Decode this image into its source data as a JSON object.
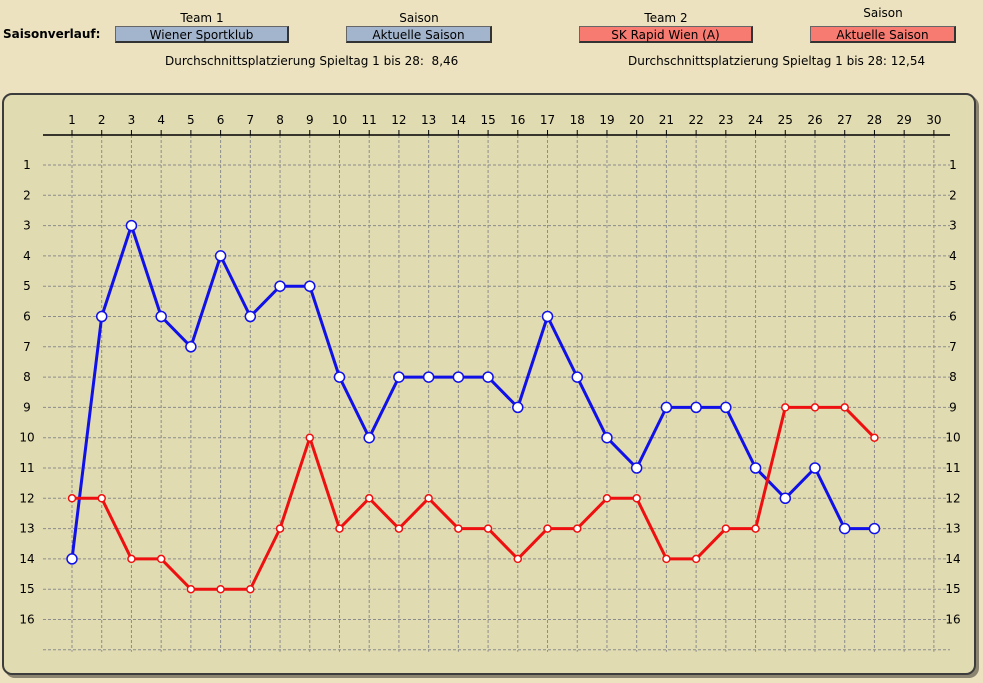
{
  "header": {
    "section_label": "Saisonverlauf:",
    "team1_label": "Team 1",
    "team1_name": "Wiener Sportklub",
    "season1_label": "Saison",
    "season1_value": "Aktuelle Saison",
    "team2_label": "Team 2",
    "team2_name": "SK Rapid Wien (A)",
    "season2_label": "Saison",
    "season2_value": "Aktuelle Saison",
    "avg1_text": "Durchschnittsplatzierung Spieltag 1 bis 28:  8,46",
    "avg2_text": "Durchschnittsplatzierung Spieltag 1 bis 28: 12,54"
  },
  "colors": {
    "team1": "#1010e8",
    "team2": "#ee1010",
    "team1_selector": "#a3b5cd",
    "team2_selector": "#f77b70"
  },
  "chart_data": {
    "type": "line",
    "title": "",
    "xlabel": "",
    "ylabel": "",
    "x_ticks": [
      1,
      2,
      3,
      4,
      5,
      6,
      7,
      8,
      9,
      10,
      11,
      12,
      13,
      14,
      15,
      16,
      17,
      18,
      19,
      20,
      21,
      22,
      23,
      24,
      25,
      26,
      27,
      28,
      29,
      30
    ],
    "y_ticks": [
      1,
      2,
      3,
      4,
      5,
      6,
      7,
      8,
      9,
      10,
      11,
      12,
      13,
      14,
      15,
      16
    ],
    "xlim": [
      1,
      30
    ],
    "ylim": [
      1,
      17
    ],
    "y_inverted": true,
    "grid": true,
    "x_axis_position": "top",
    "series": [
      {
        "name": "Wiener Sportklub",
        "color": "#1010e8",
        "x": [
          1,
          2,
          3,
          4,
          5,
          6,
          7,
          8,
          9,
          10,
          11,
          12,
          13,
          14,
          15,
          16,
          17,
          18,
          19,
          20,
          21,
          22,
          23,
          24,
          25,
          26,
          27,
          28
        ],
        "values": [
          14,
          6,
          3,
          6,
          7,
          4,
          6,
          5,
          5,
          8,
          10,
          8,
          8,
          8,
          8,
          9,
          6,
          8,
          10,
          11,
          9,
          9,
          9,
          11,
          12,
          11,
          13,
          13
        ]
      },
      {
        "name": "SK Rapid Wien (A)",
        "color": "#ee1010",
        "x": [
          1,
          2,
          3,
          4,
          5,
          6,
          7,
          8,
          9,
          10,
          11,
          12,
          13,
          14,
          15,
          16,
          17,
          18,
          19,
          20,
          21,
          22,
          23,
          24,
          25,
          26,
          27,
          28
        ],
        "values": [
          12,
          12,
          14,
          14,
          15,
          15,
          15,
          13,
          10,
          13,
          12,
          13,
          12,
          13,
          13,
          14,
          13,
          13,
          12,
          12,
          14,
          14,
          13,
          13,
          9,
          9,
          9,
          10
        ]
      }
    ]
  }
}
